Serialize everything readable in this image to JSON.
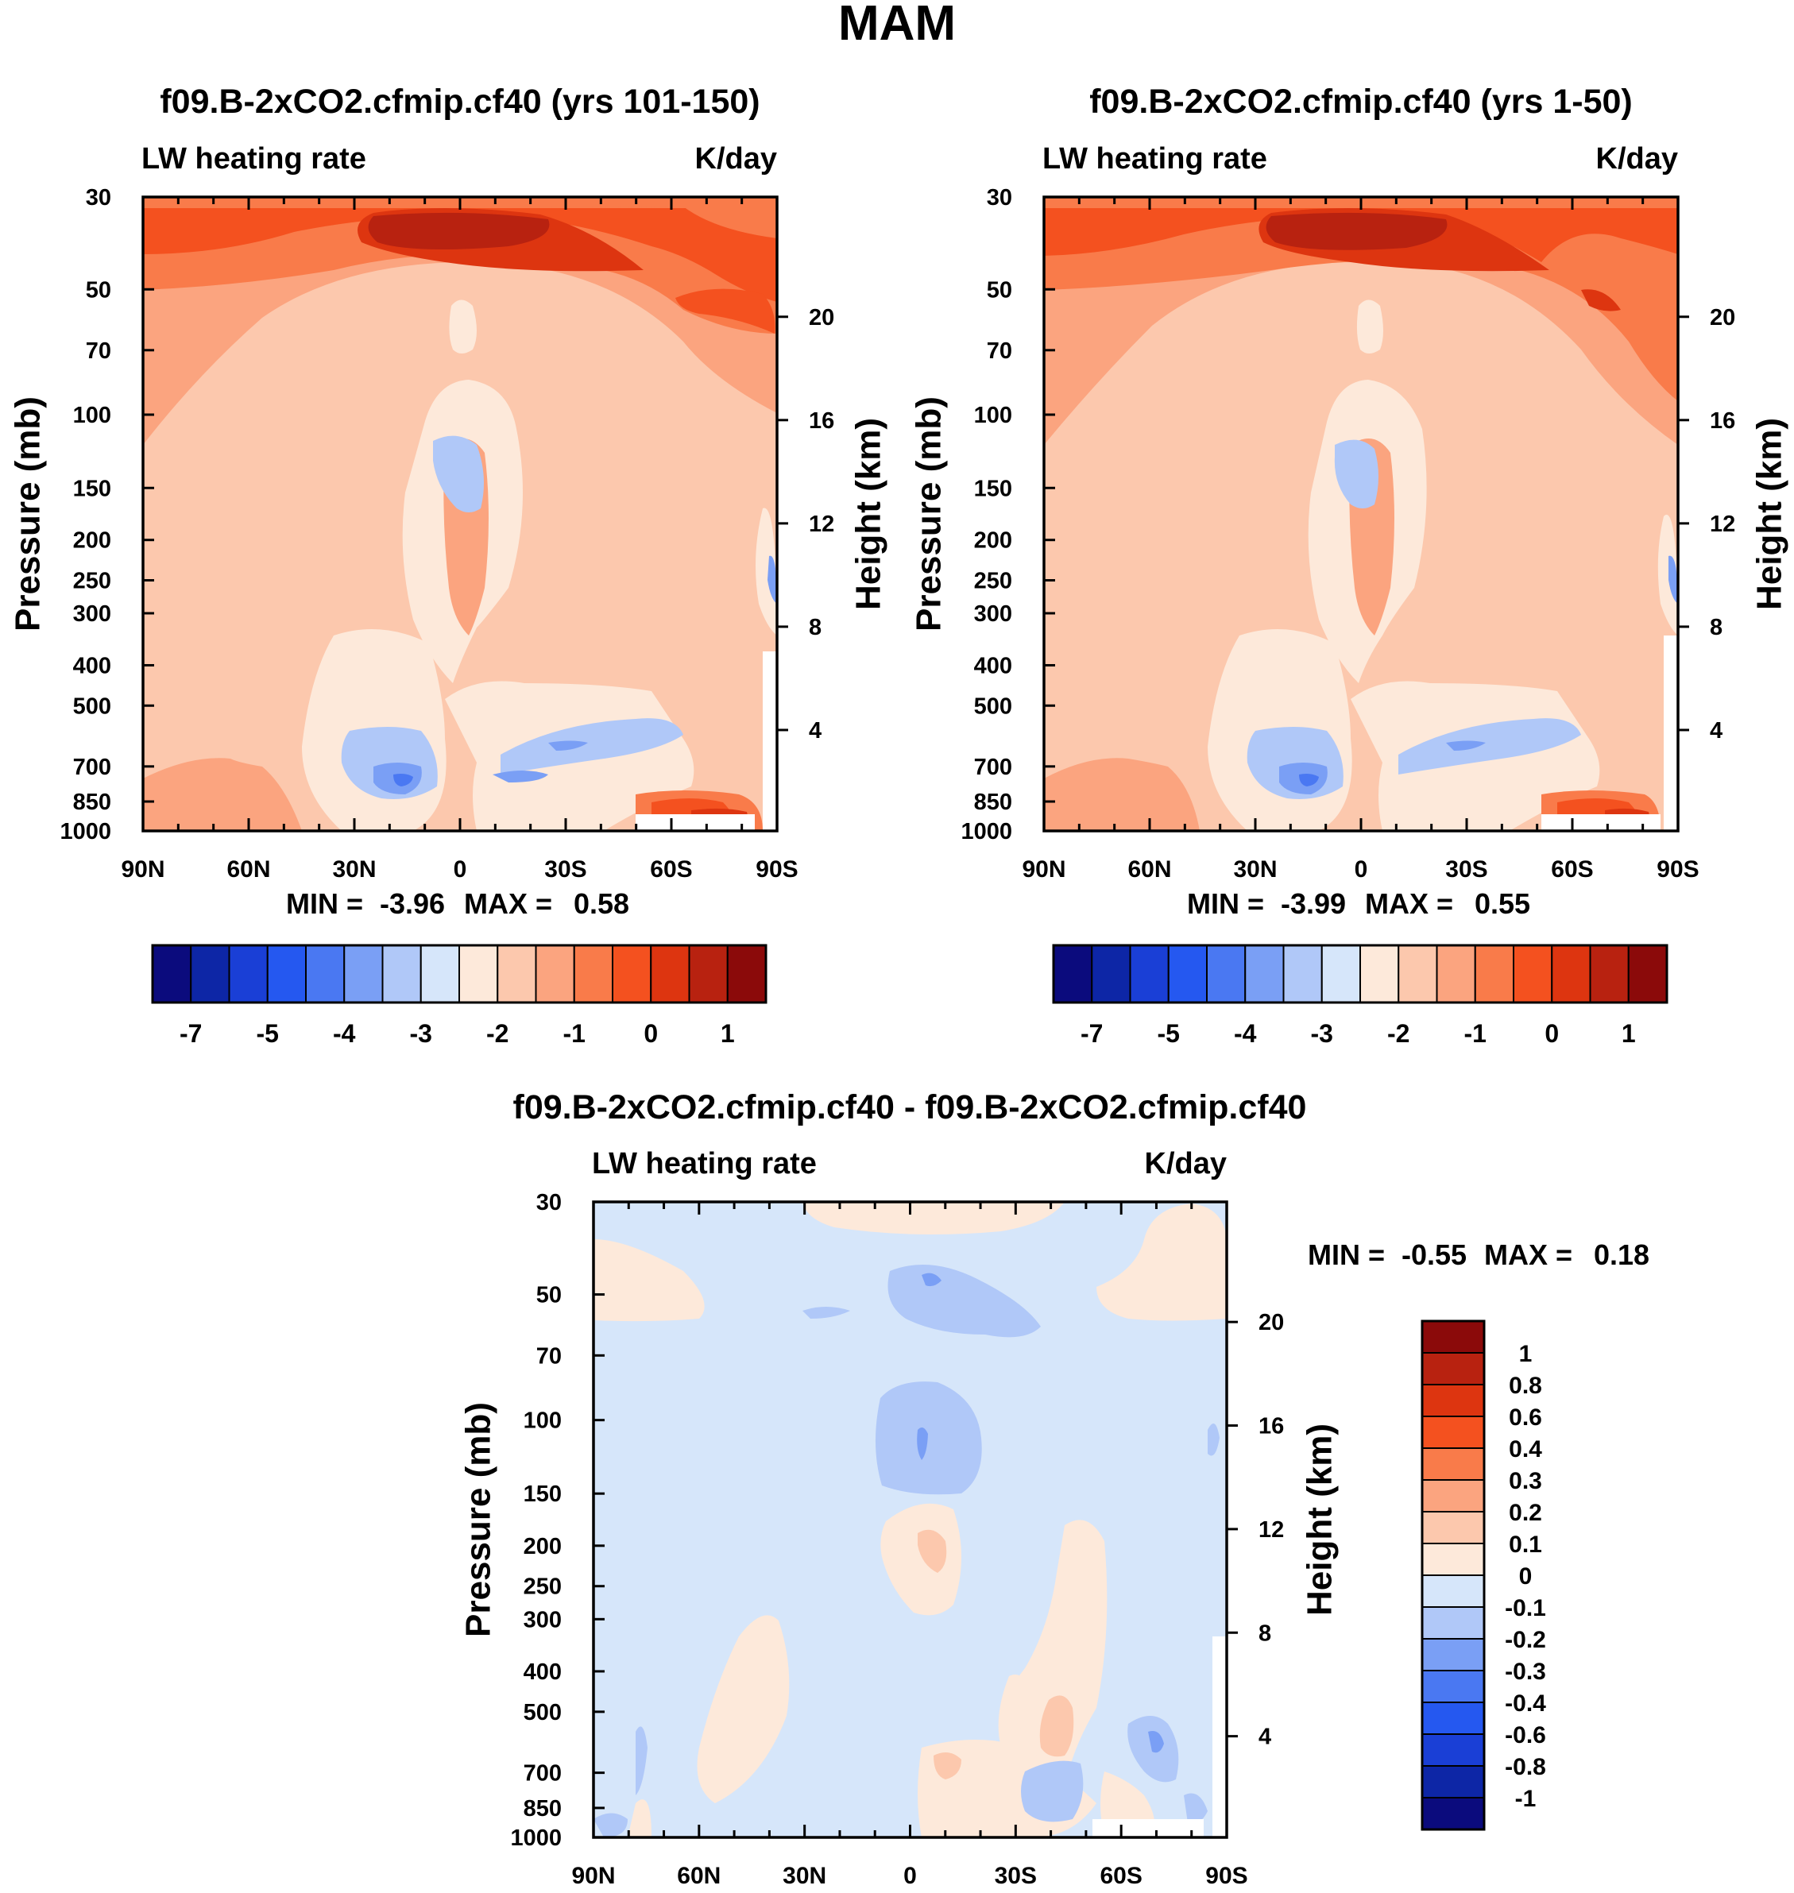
{
  "figure": {
    "season": "MAM",
    "left_pressure_axis_label": "Pressure (mb)",
    "right_height_axis_label": "Height (km)"
  },
  "colors": {
    "contour_levels": [
      "#0b0b7d",
      "#0d26a6",
      "#1a3fd6",
      "#2558f0",
      "#4a78f2",
      "#7a9ff5",
      "#b0c8f8",
      "#d6e6fa",
      "#fde9da",
      "#fcc8ad",
      "#fba47f",
      "#f97b4a",
      "#f4511f",
      "#dd3510",
      "#b82210",
      "#8b0a0a"
    ]
  },
  "chart_data": [
    {
      "type": "heatmap",
      "title": "f09.B-2xCO2.cfmip.cf40 (yrs 101-150)",
      "variable": "LW heating rate",
      "units": "K/day",
      "xlabel": "",
      "ylabel": "Pressure (mb)",
      "y2label": "Height (km)",
      "x_ticks": [
        "90N",
        "60N",
        "30N",
        "0",
        "30S",
        "60S",
        "90S"
      ],
      "y_ticks": [
        30,
        50,
        70,
        100,
        150,
        200,
        250,
        300,
        400,
        500,
        700,
        850,
        1000
      ],
      "y_ticks_right": [
        20,
        16,
        12,
        8,
        4
      ],
      "ylim": [
        1000,
        30
      ],
      "stats": {
        "min_label": "MIN =",
        "min": "-3.96",
        "max_label": "MAX =",
        "max": "0.58"
      },
      "colorbar": {
        "orientation": "horizontal",
        "labels": [
          "-7",
          "-5",
          "-4",
          "-3",
          "-2",
          "-1",
          "0",
          "1"
        ]
      }
    },
    {
      "type": "heatmap",
      "title": "f09.B-2xCO2.cfmip.cf40 (yrs 1-50)",
      "variable": "LW heating rate",
      "units": "K/day",
      "xlabel": "",
      "ylabel": "Pressure (mb)",
      "y2label": "Height (km)",
      "x_ticks": [
        "90N",
        "60N",
        "30N",
        "0",
        "30S",
        "60S",
        "90S"
      ],
      "y_ticks": [
        30,
        50,
        70,
        100,
        150,
        200,
        250,
        300,
        400,
        500,
        700,
        850,
        1000
      ],
      "y_ticks_right": [
        20,
        16,
        12,
        8,
        4
      ],
      "ylim": [
        1000,
        30
      ],
      "stats": {
        "min_label": "MIN =",
        "min": "-3.99",
        "max_label": "MAX =",
        "max": "0.55"
      },
      "colorbar": {
        "orientation": "horizontal",
        "labels": [
          "-7",
          "-5",
          "-4",
          "-3",
          "-2",
          "-1",
          "0",
          "1"
        ]
      }
    },
    {
      "type": "heatmap",
      "title": "f09.B-2xCO2.cfmip.cf40 - f09.B-2xCO2.cfmip.cf40",
      "variable": "LW heating rate",
      "units": "K/day",
      "xlabel": "",
      "ylabel": "Pressure (mb)",
      "y2label": "Height (km)",
      "x_ticks": [
        "90N",
        "60N",
        "30N",
        "0",
        "30S",
        "60S",
        "90S"
      ],
      "y_ticks": [
        30,
        50,
        70,
        100,
        150,
        200,
        250,
        300,
        400,
        500,
        700,
        850,
        1000
      ],
      "y_ticks_right": [
        20,
        16,
        12,
        8,
        4
      ],
      "ylim": [
        1000,
        30
      ],
      "stats": {
        "min_label": "MIN =",
        "min": "-0.55",
        "max_label": "MAX =",
        "max": "0.18"
      },
      "colorbar": {
        "orientation": "vertical",
        "labels": [
          "1",
          "0.8",
          "0.6",
          "0.4",
          "0.3",
          "0.2",
          "0.1",
          "0",
          "-0.1",
          "-0.2",
          "-0.3",
          "-0.4",
          "-0.6",
          "-0.8",
          "-1"
        ]
      }
    }
  ]
}
